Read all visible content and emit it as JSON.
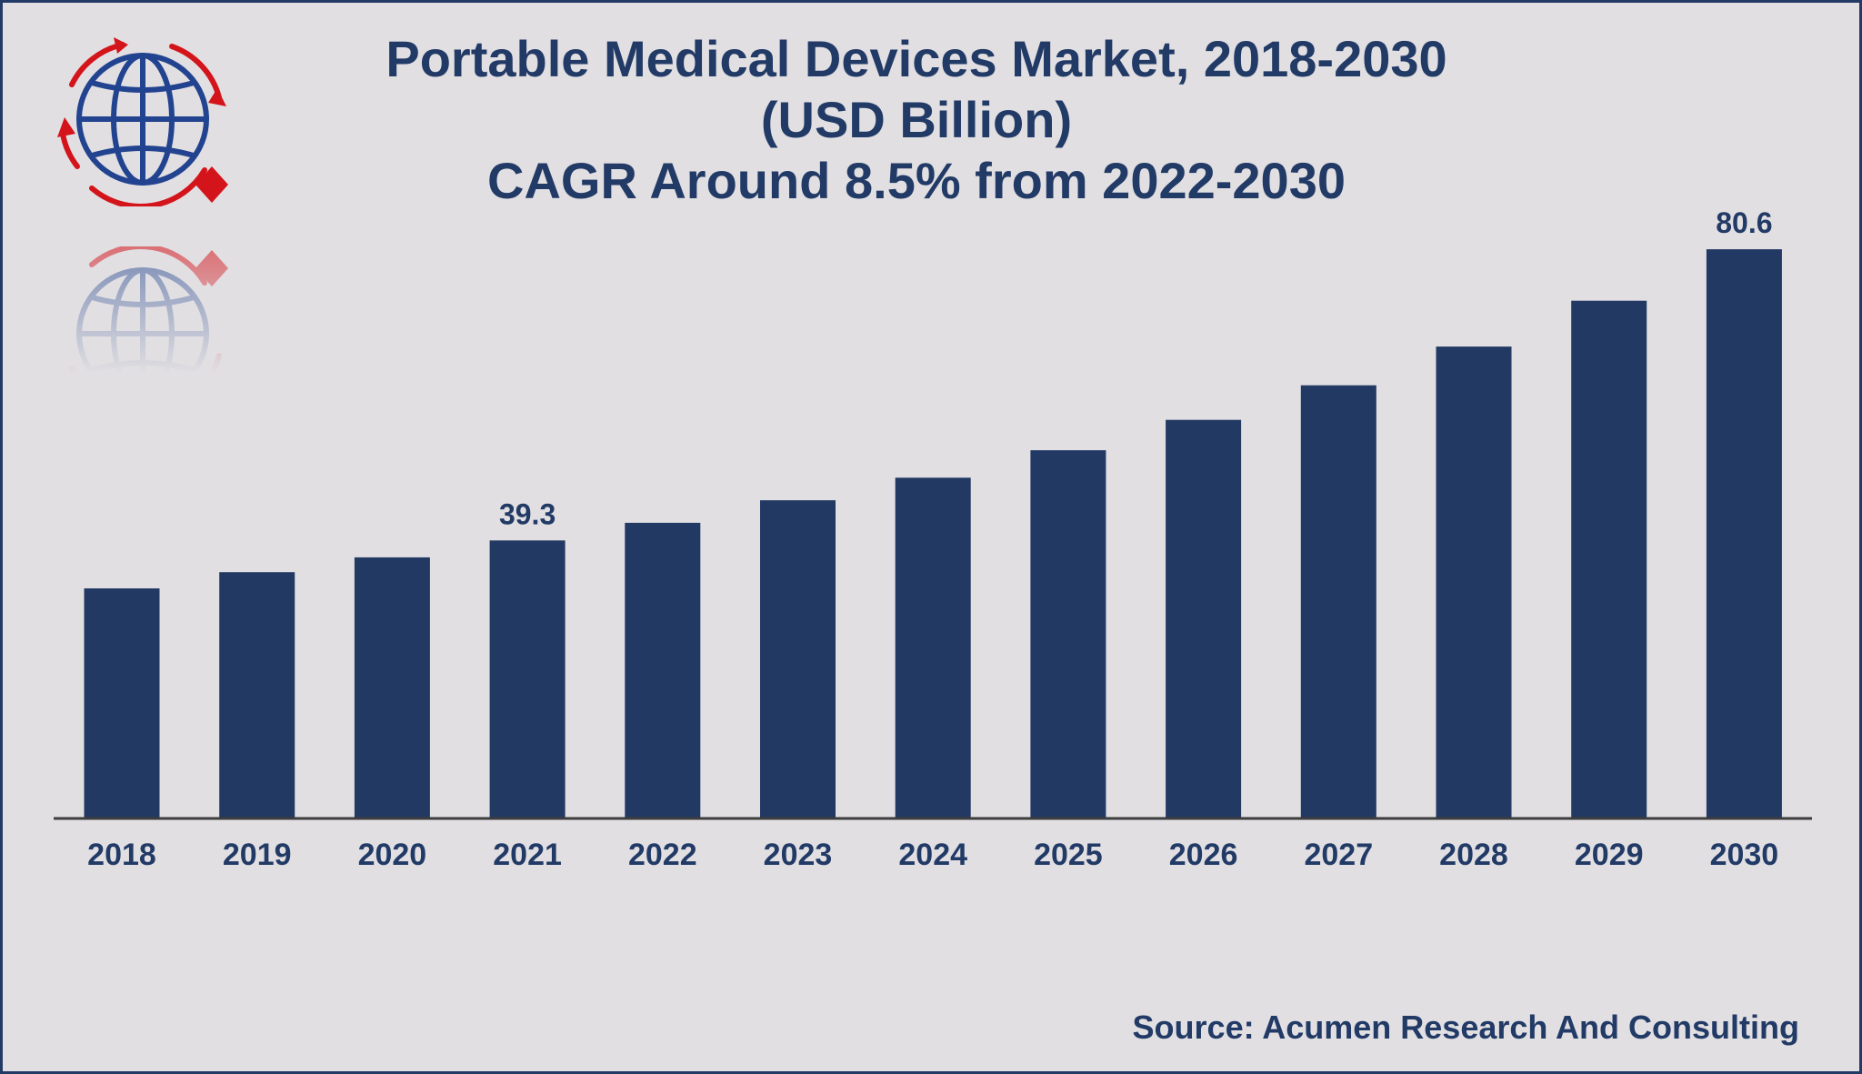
{
  "colors": {
    "background": "#e1dfe2",
    "bar": "#223963",
    "text": "#223a66",
    "axis": "#3d3d3d",
    "logo_blue": "#22438f",
    "logo_red": "#d4141b"
  },
  "logo": {
    "icon": "globe-with-arrows-icon"
  },
  "chart_data": {
    "type": "bar",
    "title_lines": [
      "Portable Medical Devices Market, 2018-2030",
      "(USD Billion)",
      "CAGR Around 8.5% from 2022-2030"
    ],
    "categories": [
      "2018",
      "2019",
      "2020",
      "2021",
      "2022",
      "2023",
      "2024",
      "2025",
      "2026",
      "2027",
      "2028",
      "2029",
      "2030"
    ],
    "values": [
      32.5,
      34.8,
      36.9,
      39.3,
      41.8,
      45.0,
      48.2,
      52.1,
      56.4,
      61.3,
      66.8,
      73.3,
      80.6
    ],
    "data_labels": [
      {
        "index": 3,
        "text": "39.3"
      },
      {
        "index": 12,
        "text": "80.6"
      }
    ],
    "ylim": [
      0,
      85
    ],
    "grid": false,
    "legend": "none",
    "source": "Source: Acumen Research And Consulting"
  }
}
